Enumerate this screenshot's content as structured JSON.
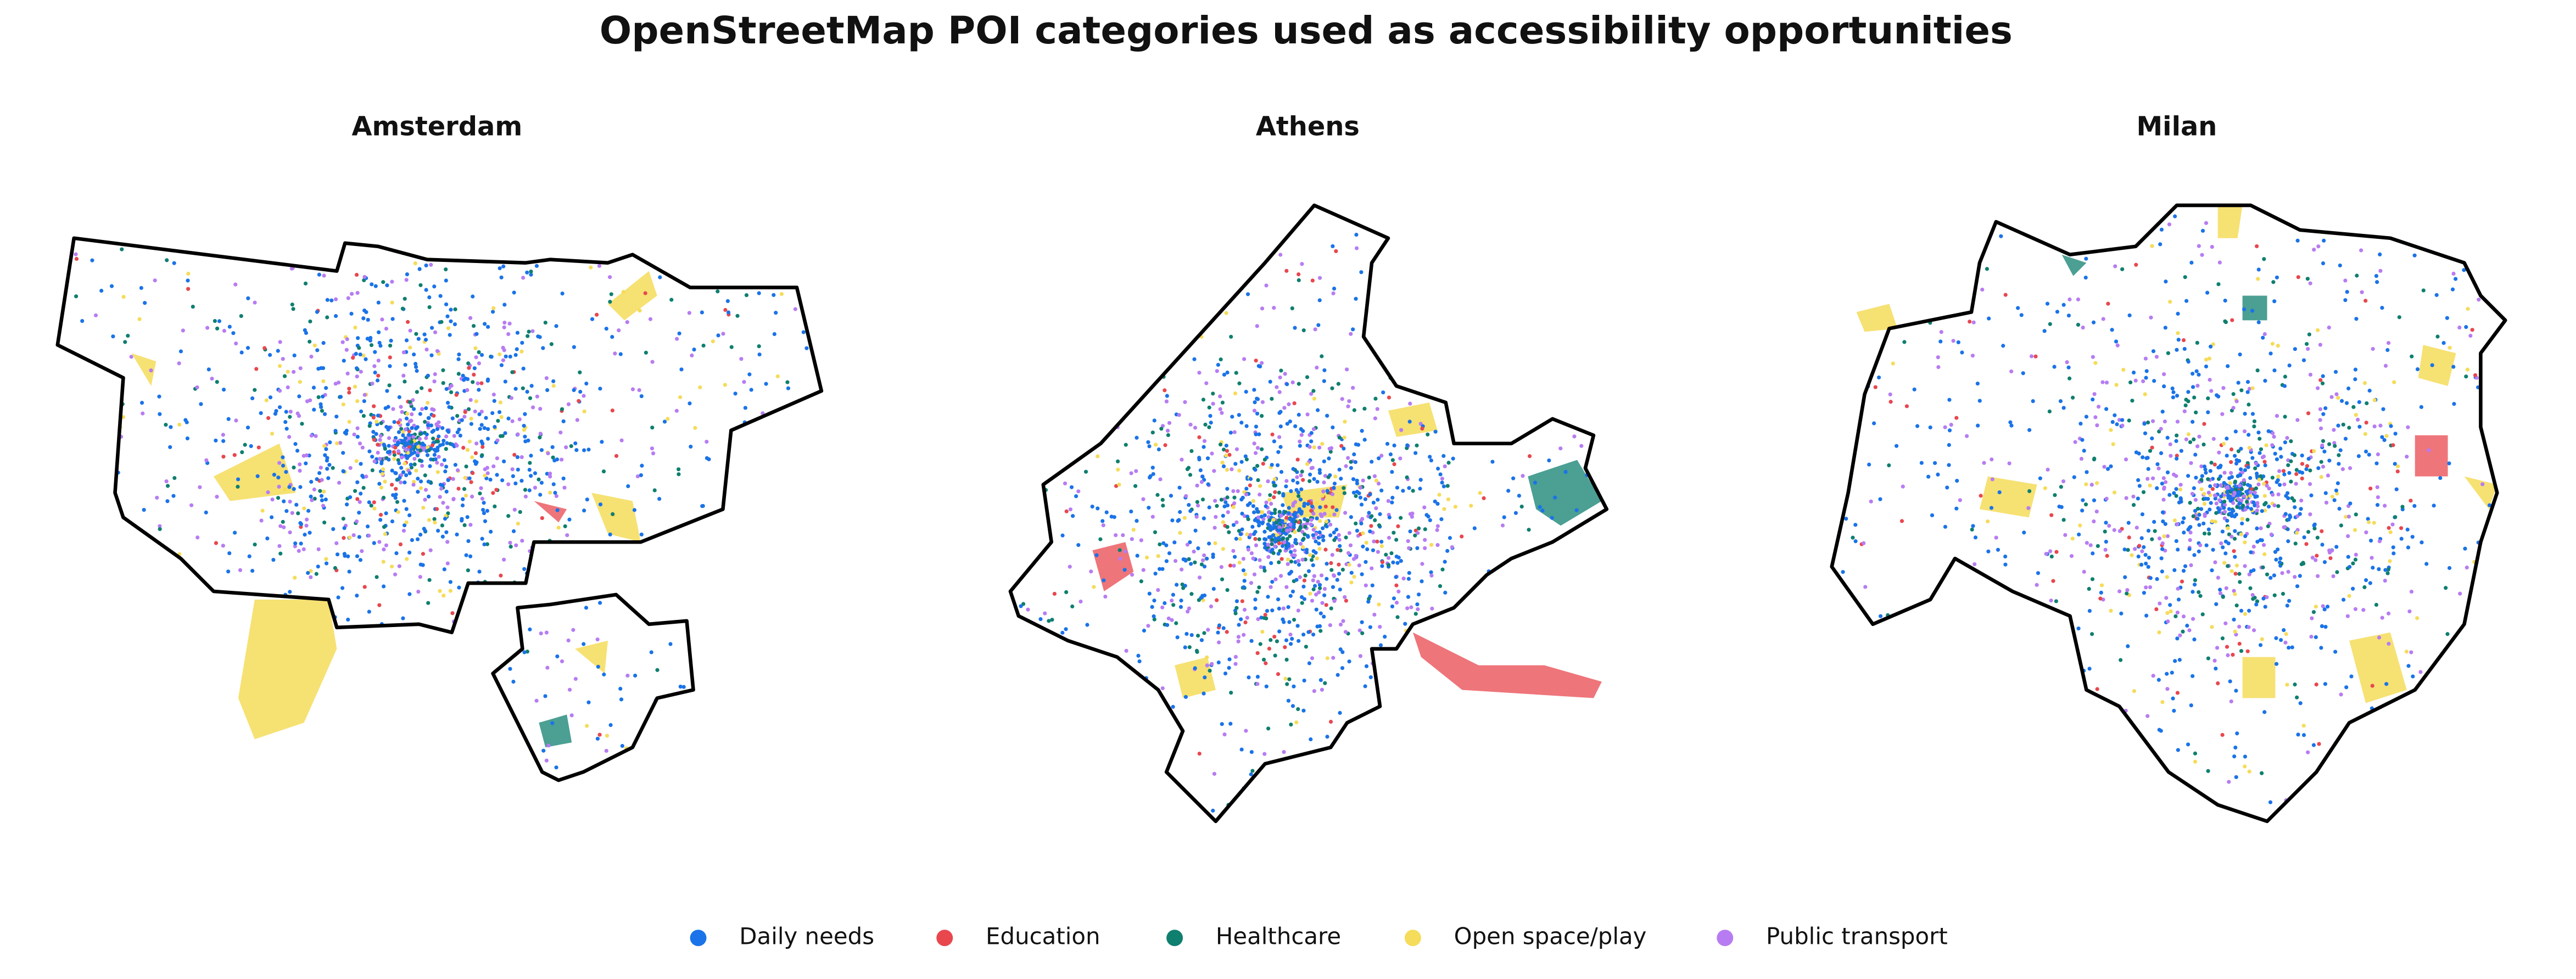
{
  "title": "OpenStreetMap POI categories used as accessibility opportunities",
  "maps": [
    {
      "name": "Amsterdam"
    },
    {
      "name": "Athens"
    },
    {
      "name": "Milan"
    }
  ],
  "legend": [
    {
      "label": "Daily needs",
      "color": "#1a73e8"
    },
    {
      "label": "Education",
      "color": "#e8474e"
    },
    {
      "label": "Healthcare",
      "color": "#0f7f6f"
    },
    {
      "label": "Open space/play",
      "color": "#f5dc5a"
    },
    {
      "label": "Public transport",
      "color": "#b77cf2"
    }
  ]
}
